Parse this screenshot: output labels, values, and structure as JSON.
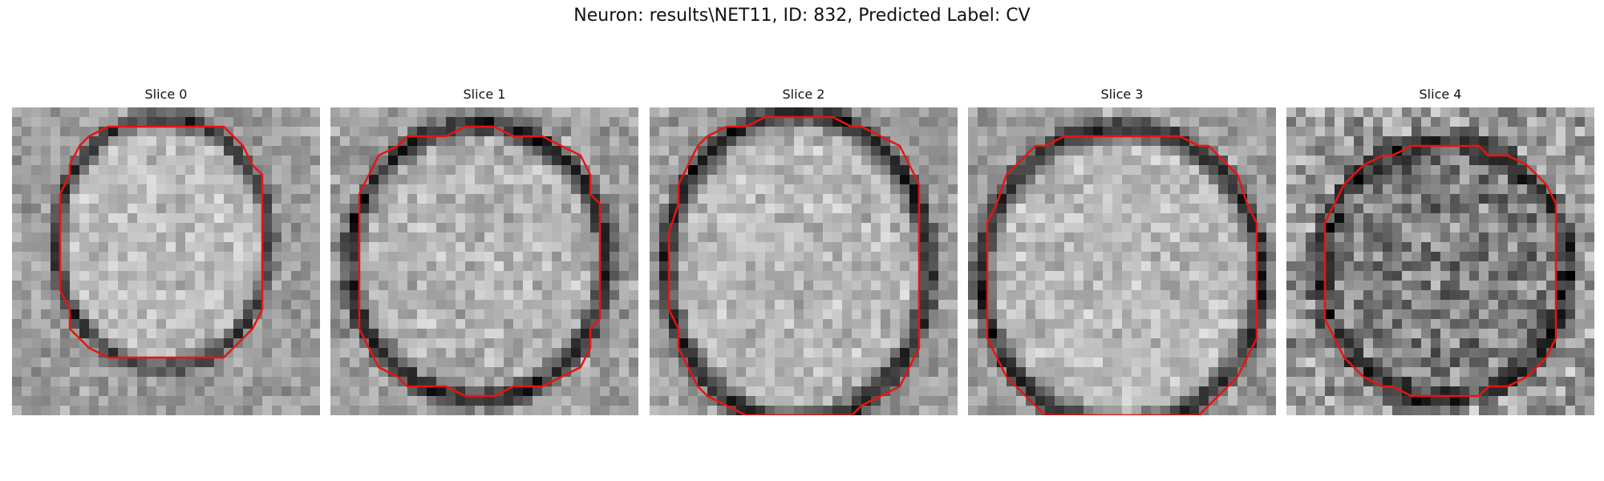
{
  "figure": {
    "title": "Neuron: results\\NET11, ID: 832, Predicted Label: CV"
  },
  "colors": {
    "background": "#ffffff",
    "contour": "#e8140f",
    "text": "#111111"
  },
  "slices": [
    {
      "label": "Slice 0",
      "center": [
        0.49,
        0.44
      ],
      "radius": [
        0.36,
        0.42
      ],
      "center_brightness": 0.74,
      "rim_darkness": 0.55,
      "noise": 0.1
    },
    {
      "label": "Slice 1",
      "center": [
        0.48,
        0.5
      ],
      "radius": [
        0.43,
        0.46
      ],
      "center_brightness": 0.7,
      "rim_darkness": 0.6,
      "noise": 0.12
    },
    {
      "label": "Slice 2",
      "center": [
        0.48,
        0.52
      ],
      "radius": [
        0.44,
        0.52
      ],
      "center_brightness": 0.72,
      "rim_darkness": 0.62,
      "noise": 0.11
    },
    {
      "label": "Slice 3",
      "center": [
        0.5,
        0.55
      ],
      "radius": [
        0.47,
        0.5
      ],
      "center_brightness": 0.73,
      "rim_darkness": 0.6,
      "noise": 0.11
    },
    {
      "label": "Slice 4",
      "center": [
        0.51,
        0.53
      ],
      "radius": [
        0.41,
        0.43
      ],
      "center_brightness": 0.5,
      "rim_darkness": 0.35,
      "noise": 0.22
    }
  ]
}
